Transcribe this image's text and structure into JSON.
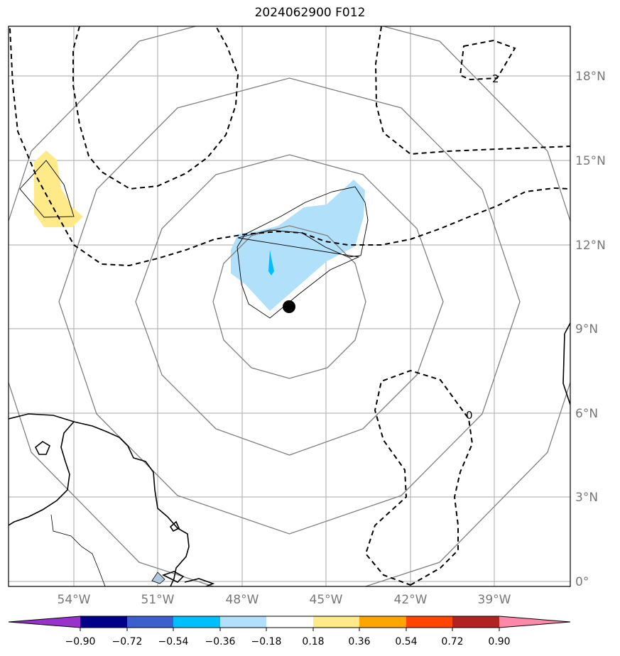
{
  "title": "2024062900 F012",
  "map": {
    "lon_labels": [
      "54°W",
      "51°W",
      "48°W",
      "45°W",
      "42°W",
      "39°W"
    ],
    "lat_labels": [
      "18°N",
      "15°N",
      "12°N",
      "9°N",
      "6°N",
      "3°N",
      "0°"
    ],
    "contour_labels": [
      "2",
      "0"
    ],
    "center_marker": {
      "lon": -46.3,
      "lat": 9.8
    },
    "colors": {
      "grid": "#aaaaaa",
      "range_rings": "#808080",
      "coastline": "#000000",
      "negative_fill": "#b0e0fa",
      "negative_core": "#00bfff",
      "positive_fill": "#ffea8a"
    }
  },
  "colorbar": {
    "tick_labels": [
      "−0.90",
      "−0.72",
      "−0.54",
      "−0.36",
      "−0.18",
      "0.18",
      "0.36",
      "0.54",
      "0.72",
      "0.90"
    ],
    "colors": [
      "#9932cc",
      "#00008b",
      "#3b5fcd",
      "#00bfff",
      "#b0e0fa",
      "#ffffff",
      "#ffea8a",
      "#ffa500",
      "#ff4500",
      "#b22222",
      "#ff88aa"
    ]
  }
}
